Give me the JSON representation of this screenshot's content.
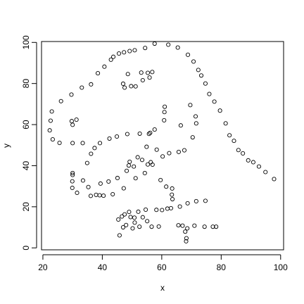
{
  "chart_data": {
    "type": "scatter",
    "title": "",
    "xlabel": "x",
    "ylabel": "y",
    "xlim": [
      19.54,
      101.0
    ],
    "ylim": [
      -0.95,
      100.44
    ],
    "x_ticks": [
      20,
      40,
      60,
      80,
      100
    ],
    "y_ticks": [
      0,
      20,
      40,
      60,
      80,
      100
    ],
    "x_tick_labels": [
      "20",
      "40",
      "60",
      "80",
      "100"
    ],
    "y_tick_labels": [
      "0",
      "20",
      "40",
      "60",
      "80",
      "100"
    ],
    "grid": false,
    "legend": "none",
    "marker": "open-circle",
    "colors": {
      "points": "#000000",
      "axes": "#000000",
      "background": "#ffffff"
    },
    "series": [
      {
        "points": [
          [
            22.3,
            57.2
          ],
          [
            22.6,
            61.9
          ],
          [
            23.0,
            66.4
          ],
          [
            23.3,
            52.8
          ],
          [
            25.6,
            51.1
          ],
          [
            26.1,
            71.4
          ],
          [
            29.6,
            74.6
          ],
          [
            29.7,
            61.7
          ],
          [
            30.0,
            51.0
          ],
          [
            30.0,
            59.9
          ],
          [
            31.3,
            62.4
          ],
          [
            33.1,
            78.0
          ],
          [
            33.4,
            51.0
          ],
          [
            36.2,
            79.6
          ],
          [
            38.5,
            85.0
          ],
          [
            40.7,
            88.2
          ],
          [
            42.9,
            91.6
          ],
          [
            43.7,
            93.0
          ],
          [
            45.6,
            94.6
          ],
          [
            47.3,
            95.2
          ],
          [
            49.2,
            95.8
          ],
          [
            50.9,
            96.2
          ],
          [
            54.4,
            97.3
          ],
          [
            57.6,
            99.4
          ],
          [
            62.2,
            98.9
          ],
          [
            65.4,
            97.5
          ],
          [
            68.8,
            94.0
          ],
          [
            70.7,
            90.7
          ],
          [
            72.3,
            86.6
          ],
          [
            73.3,
            83.9
          ],
          [
            74.7,
            80.0
          ],
          [
            76.0,
            74.9
          ],
          [
            77.7,
            71.2
          ],
          [
            79.6,
            66.8
          ],
          [
            81.5,
            60.6
          ],
          [
            82.8,
            54.8
          ],
          [
            84.3,
            52.1
          ],
          [
            85.8,
            47.6
          ],
          [
            87.3,
            46.0
          ],
          [
            89.1,
            42.6
          ],
          [
            90.8,
            41.7
          ],
          [
            92.7,
            39.6
          ],
          [
            94.9,
            36.9
          ],
          [
            97.8,
            33.5
          ],
          [
            47.0,
            79.9
          ],
          [
            47.5,
            78.0
          ],
          [
            48.6,
            84.6
          ],
          [
            49.7,
            78.7
          ],
          [
            51.2,
            78.6
          ],
          [
            53.1,
            85.3
          ],
          [
            53.6,
            81.6
          ],
          [
            55.3,
            85.2
          ],
          [
            55.9,
            82.9
          ],
          [
            56.8,
            85.6
          ],
          [
            57.6,
            57.6
          ],
          [
            55.7,
            55.5
          ],
          [
            56.1,
            56.0
          ],
          [
            52.6,
            55.6
          ],
          [
            48.4,
            55.4
          ],
          [
            44.9,
            54.2
          ],
          [
            42.4,
            53.2
          ],
          [
            39.2,
            51.0
          ],
          [
            37.4,
            48.6
          ],
          [
            36.2,
            45.8
          ],
          [
            34.9,
            41.3
          ],
          [
            30.0,
            36.4
          ],
          [
            30.0,
            35.5
          ],
          [
            29.9,
            32.4
          ],
          [
            29.9,
            29.2
          ],
          [
            31.5,
            26.8
          ],
          [
            33.5,
            32.8
          ],
          [
            35.3,
            29.6
          ],
          [
            36.1,
            25.3
          ],
          [
            37.9,
            25.8
          ],
          [
            39.4,
            31.3
          ],
          [
            39.1,
            25.6
          ],
          [
            40.4,
            25.4
          ],
          [
            42.1,
            32.3
          ],
          [
            43.5,
            26.1
          ],
          [
            45.1,
            34.0
          ],
          [
            47.2,
            29.0
          ],
          [
            48.2,
            37.5
          ],
          [
            48.9,
            40.1
          ],
          [
            49.2,
            41.9
          ],
          [
            50.6,
            39.6
          ],
          [
            51.2,
            33.9
          ],
          [
            51.9,
            44.1
          ],
          [
            53.4,
            42.8
          ],
          [
            54.3,
            36.4
          ],
          [
            54.9,
            49.2
          ],
          [
            55.3,
            40.6
          ],
          [
            56.3,
            41.7
          ],
          [
            56.9,
            40.5
          ],
          [
            58.3,
            47.8
          ],
          [
            59.6,
            33.0
          ],
          [
            60.3,
            44.5
          ],
          [
            60.8,
            62.1
          ],
          [
            60.9,
            66.1
          ],
          [
            61.0,
            68.7
          ],
          [
            61.5,
            29.8
          ],
          [
            62.5,
            46.1
          ],
          [
            63.4,
            25.9
          ],
          [
            63.6,
            23.7
          ],
          [
            63.5,
            28.9
          ],
          [
            65.7,
            46.7
          ],
          [
            66.4,
            59.6
          ],
          [
            67.6,
            47.5
          ],
          [
            69.6,
            69.5
          ],
          [
            70.4,
            53.8
          ],
          [
            71.4,
            64.0
          ],
          [
            71.6,
            60.6
          ],
          [
            45.4,
            13.8
          ],
          [
            45.8,
            6.1
          ],
          [
            46.6,
            15.3
          ],
          [
            47.0,
            10.0
          ],
          [
            47.5,
            16.3
          ],
          [
            48.0,
            11.1
          ],
          [
            49.0,
            17.5
          ],
          [
            49.5,
            15.0
          ],
          [
            50.2,
            9.5
          ],
          [
            50.8,
            14.7
          ],
          [
            50.9,
            12.3
          ],
          [
            52.1,
            17.6
          ],
          [
            52.5,
            10.3
          ],
          [
            53.6,
            14.9
          ],
          [
            54.6,
            18.6
          ],
          [
            55.1,
            13.0
          ],
          [
            56.6,
            10.3
          ],
          [
            58.2,
            18.5
          ],
          [
            59.0,
            10.4
          ],
          [
            60.1,
            18.4
          ],
          [
            61.9,
            19.1
          ],
          [
            63.1,
            19.3
          ],
          [
            65.6,
            11.0
          ],
          [
            66.1,
            20.1
          ],
          [
            67.0,
            10.8
          ],
          [
            67.9,
            7.9
          ],
          [
            68.2,
            3.2
          ],
          [
            68.3,
            4.7
          ],
          [
            68.6,
            9.5
          ],
          [
            68.7,
            21.7
          ],
          [
            71.0,
            10.8
          ],
          [
            71.6,
            22.7
          ],
          [
            74.4,
            10.3
          ],
          [
            74.7,
            22.9
          ],
          [
            77.2,
            10.3
          ],
          [
            78.3,
            10.3
          ]
        ]
      }
    ]
  }
}
